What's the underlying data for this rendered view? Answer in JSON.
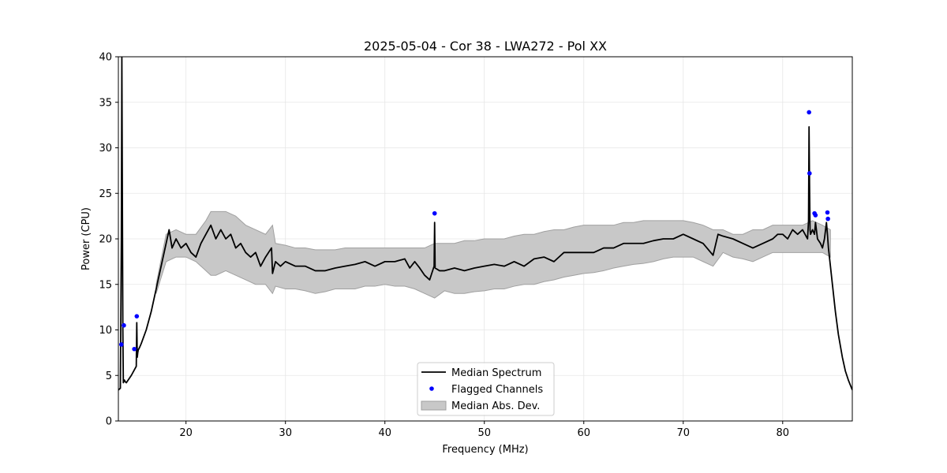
{
  "chart_data": {
    "type": "line",
    "title": "2025-05-04 - Cor 38 - LWA272 - Pol XX",
    "xlabel": "Frequency (MHz)",
    "ylabel": "Power (CPU)",
    "xlim": [
      13.2,
      87.0
    ],
    "ylim": [
      0,
      40
    ],
    "xticks": [
      20,
      30,
      40,
      50,
      60,
      70,
      80
    ],
    "yticks": [
      0,
      5,
      10,
      15,
      20,
      25,
      30,
      35,
      40
    ],
    "grid": true,
    "legend_position": "lower-center",
    "colors": {
      "median": "#000000",
      "flagged": "#0000ff",
      "mad_fill": "#c8c8c8",
      "mad_edge": "#a0a0a0"
    },
    "series": [
      {
        "name": "Median Spectrum",
        "kind": "line",
        "x": [
          13.2,
          13.4,
          13.5,
          13.55,
          13.6,
          13.65,
          13.7,
          13.8,
          13.9,
          14.0,
          14.5,
          15.0,
          15.05,
          15.1,
          15.15,
          15.2,
          15.3,
          15.5,
          16.0,
          16.5,
          17.0,
          17.5,
          18.0,
          18.3,
          18.6,
          19.0,
          19.5,
          20.0,
          20.5,
          21.0,
          21.5,
          22.0,
          22.5,
          23.0,
          23.5,
          24.0,
          24.5,
          25.0,
          25.5,
          26.0,
          26.5,
          27.0,
          27.5,
          28.0,
          28.6,
          28.7,
          29.0,
          29.5,
          30.0,
          31.0,
          32.0,
          33.0,
          34.0,
          35.0,
          36.0,
          37.0,
          38.0,
          39.0,
          40.0,
          41.0,
          42.0,
          42.5,
          43.0,
          43.5,
          44.0,
          44.5,
          44.95,
          45.0,
          45.05,
          45.5,
          46.0,
          47.0,
          48.0,
          49.0,
          50.0,
          51.0,
          52.0,
          53.0,
          54.0,
          55.0,
          56.0,
          57.0,
          58.0,
          59.0,
          60.0,
          61.0,
          62.0,
          63.0,
          64.0,
          65.0,
          66.0,
          67.0,
          68.0,
          69.0,
          70.0,
          71.0,
          72.0,
          73.0,
          73.5,
          74.0,
          75.0,
          76.0,
          77.0,
          78.0,
          79.0,
          79.5,
          80.0,
          80.5,
          81.0,
          81.5,
          82.0,
          82.5,
          82.6,
          82.65,
          82.7,
          82.75,
          82.8,
          83.0,
          83.2,
          83.3,
          83.5,
          83.8,
          84.0,
          84.2,
          84.4,
          84.5,
          84.6,
          84.8,
          85.0,
          85.3,
          85.6,
          86.0,
          86.3,
          86.6,
          87.0
        ],
        "values": [
          3.4,
          3.6,
          20.0,
          40.0,
          25.0,
          10.0,
          4.2,
          4.5,
          4.3,
          4.2,
          5.0,
          6.0,
          10.8,
          7.0,
          7.5,
          7.8,
          8.0,
          8.5,
          10.0,
          12.0,
          14.5,
          17.0,
          19.5,
          21.0,
          19.0,
          20.0,
          19.0,
          19.5,
          18.5,
          18.0,
          19.5,
          20.5,
          21.5,
          20.0,
          21.0,
          20.0,
          20.5,
          19.0,
          19.5,
          18.5,
          18.0,
          18.5,
          17.0,
          18.0,
          19.0,
          16.2,
          17.5,
          17.0,
          17.5,
          17.0,
          17.0,
          16.5,
          16.5,
          16.8,
          17.0,
          17.2,
          17.5,
          17.0,
          17.5,
          17.5,
          17.8,
          16.8,
          17.5,
          16.8,
          16.0,
          15.5,
          17.0,
          21.8,
          16.8,
          16.5,
          16.5,
          16.8,
          16.5,
          16.8,
          17.0,
          17.2,
          17.0,
          17.5,
          17.0,
          17.8,
          18.0,
          17.5,
          18.5,
          18.5,
          18.5,
          18.5,
          19.0,
          19.0,
          19.5,
          19.5,
          19.5,
          19.8,
          20.0,
          20.0,
          20.5,
          20.0,
          19.5,
          18.2,
          20.5,
          20.3,
          20.0,
          19.5,
          19.0,
          19.5,
          20.0,
          20.5,
          20.5,
          20.0,
          21.0,
          20.5,
          21.0,
          20.0,
          22.0,
          32.3,
          26.0,
          21.0,
          20.5,
          21.0,
          20.5,
          21.8,
          20.0,
          19.5,
          19.0,
          20.0,
          21.8,
          20.5,
          19.0,
          17.0,
          15.0,
          12.0,
          9.5,
          7.0,
          5.5,
          4.5,
          3.4
        ]
      },
      {
        "name": "Flagged Channels",
        "kind": "scatter",
        "x": [
          13.5,
          13.75,
          14.8,
          15.05,
          45.0,
          82.65,
          82.7,
          83.2,
          83.3,
          84.5,
          84.55
        ],
        "values": [
          8.4,
          10.5,
          7.9,
          11.5,
          22.8,
          33.9,
          27.2,
          22.8,
          22.6,
          22.9,
          22.2
        ]
      },
      {
        "name": "Median Abs. Dev.",
        "kind": "band",
        "x": [
          17.0,
          18.0,
          19.0,
          20.0,
          21.0,
          22.0,
          22.5,
          23.0,
          24.0,
          25.0,
          26.0,
          27.0,
          28.0,
          28.7,
          29.0,
          30.0,
          31.0,
          32.0,
          33.0,
          34.0,
          35.0,
          36.0,
          37.0,
          38.0,
          39.0,
          40.0,
          41.0,
          42.0,
          43.0,
          44.0,
          45.0,
          46.0,
          47.0,
          48.0,
          49.0,
          50.0,
          51.0,
          52.0,
          53.0,
          54.0,
          55.0,
          56.0,
          57.0,
          58.0,
          59.0,
          60.0,
          61.0,
          62.0,
          63.0,
          64.0,
          65.0,
          66.0,
          67.0,
          68.0,
          69.0,
          70.0,
          71.0,
          72.0,
          73.0,
          74.0,
          75.0,
          76.0,
          77.0,
          78.0,
          79.0,
          80.0,
          81.0,
          82.0,
          83.0,
          84.0,
          84.8
        ],
        "lower": [
          14.0,
          17.5,
          18.0,
          18.0,
          17.5,
          16.5,
          16.0,
          16.0,
          16.5,
          16.0,
          15.5,
          15.0,
          15.0,
          14.0,
          14.8,
          14.5,
          14.5,
          14.3,
          14.0,
          14.2,
          14.5,
          14.5,
          14.5,
          14.8,
          14.8,
          15.0,
          14.8,
          14.8,
          14.5,
          14.0,
          13.5,
          14.3,
          14.0,
          14.0,
          14.2,
          14.3,
          14.5,
          14.5,
          14.8,
          15.0,
          15.0,
          15.3,
          15.5,
          15.8,
          16.0,
          16.2,
          16.3,
          16.5,
          16.8,
          17.0,
          17.2,
          17.3,
          17.5,
          17.8,
          18.0,
          18.0,
          18.0,
          17.5,
          17.0,
          18.5,
          18.0,
          17.8,
          17.5,
          18.0,
          18.5,
          18.5,
          18.5,
          18.5,
          18.5,
          18.5,
          18.0
        ],
        "upper": [
          15.0,
          20.5,
          21.0,
          20.5,
          20.5,
          22.0,
          23.0,
          23.0,
          23.0,
          22.5,
          21.5,
          21.0,
          20.5,
          21.5,
          19.5,
          19.3,
          19.0,
          19.0,
          18.8,
          18.8,
          18.8,
          19.0,
          19.0,
          19.0,
          19.0,
          19.0,
          19.0,
          19.0,
          19.0,
          19.0,
          19.5,
          19.5,
          19.5,
          19.8,
          19.8,
          20.0,
          20.0,
          20.0,
          20.3,
          20.5,
          20.5,
          20.8,
          21.0,
          21.0,
          21.3,
          21.5,
          21.5,
          21.5,
          21.5,
          21.8,
          21.8,
          22.0,
          22.0,
          22.0,
          22.0,
          22.0,
          21.8,
          21.5,
          21.0,
          21.0,
          20.5,
          20.5,
          21.0,
          21.0,
          21.5,
          21.5,
          21.5,
          21.5,
          22.0,
          21.5,
          21.0
        ]
      }
    ]
  }
}
